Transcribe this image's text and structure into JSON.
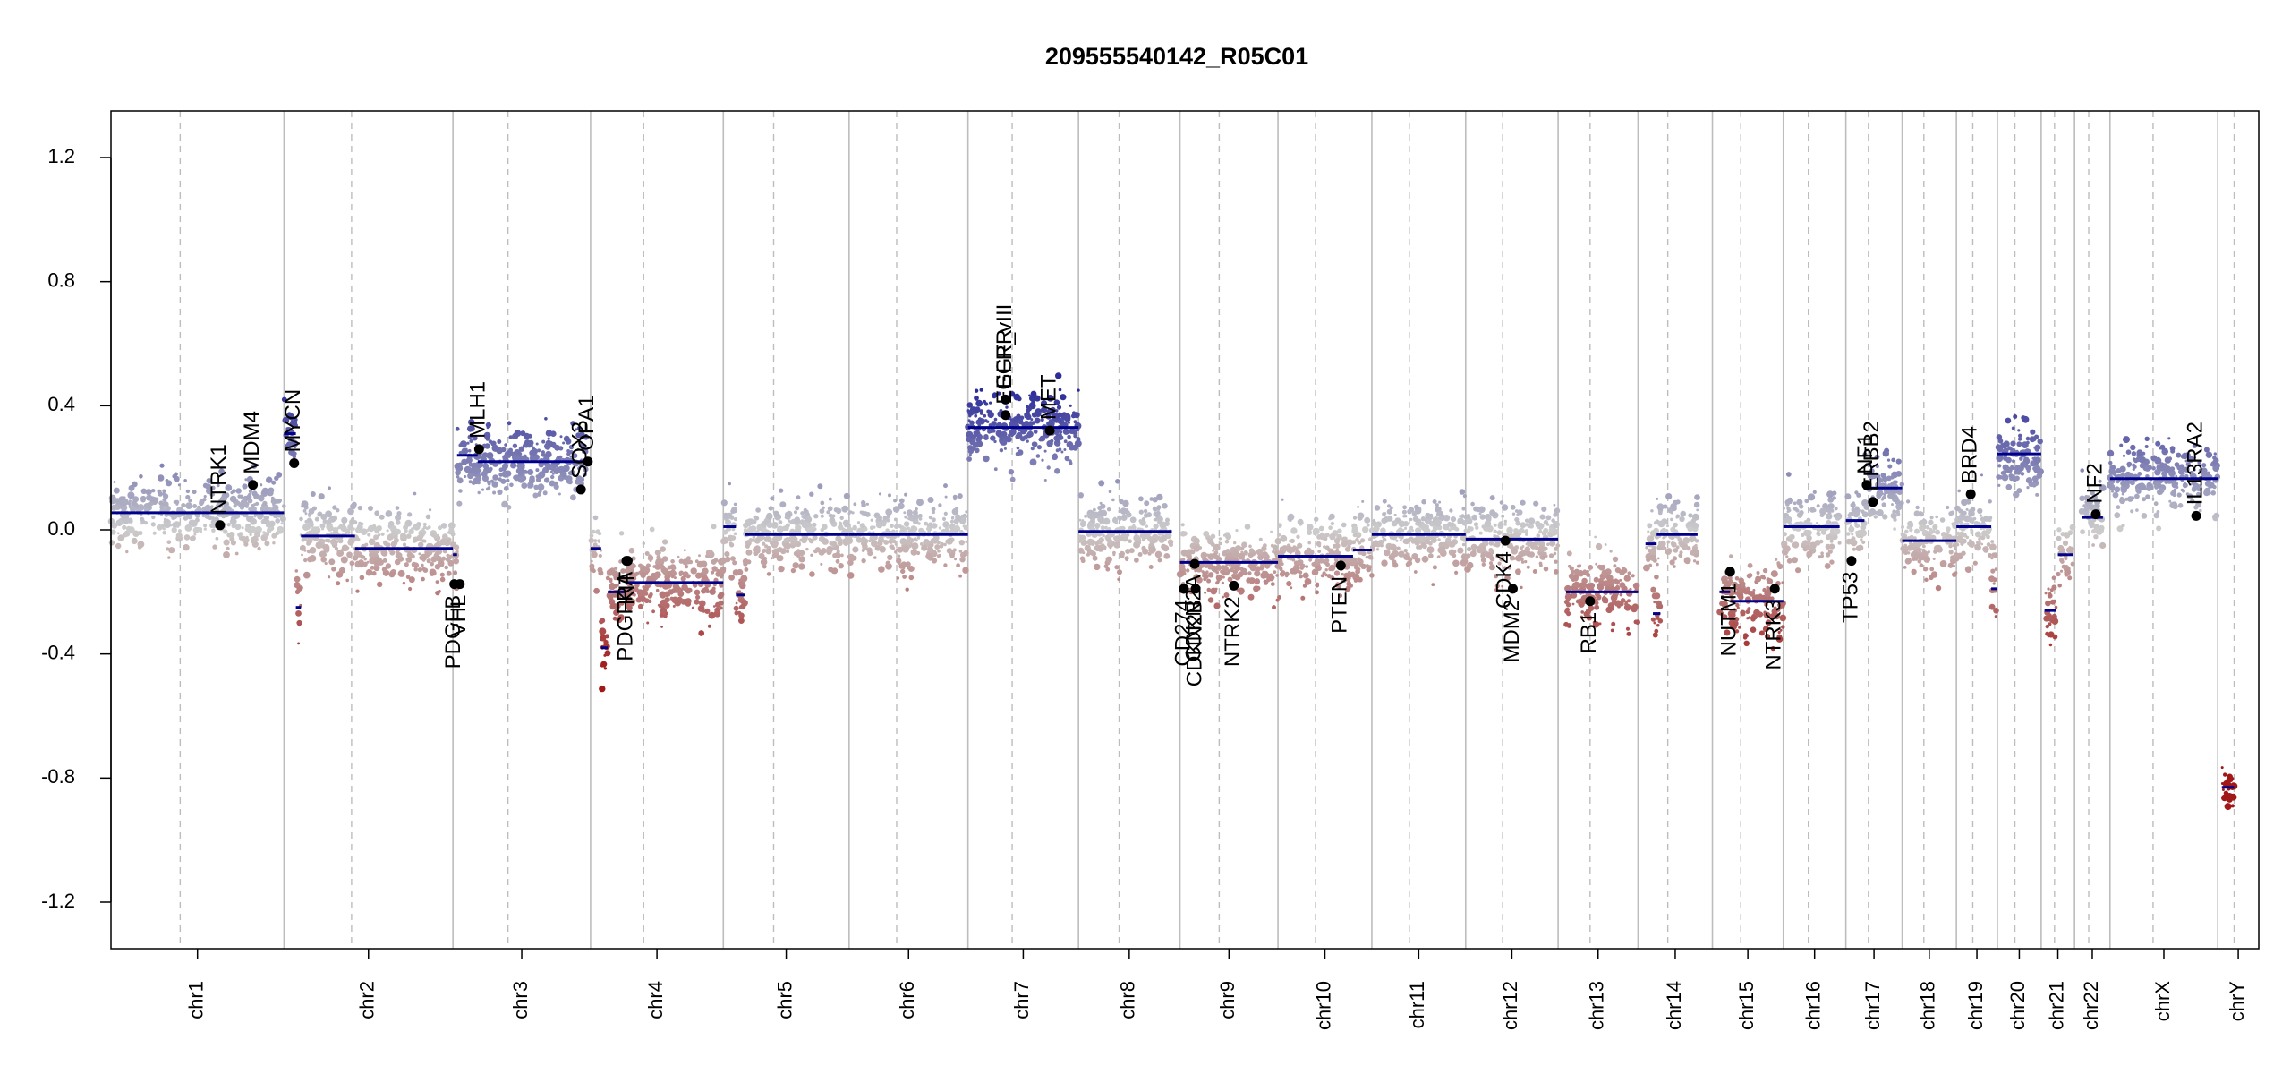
{
  "chart_data": {
    "type": "scatter",
    "title": "209555540142_R05C01",
    "xlabel": "",
    "ylabel": "",
    "ylim": [
      -1.35,
      1.35
    ],
    "yticks": [
      -1.2,
      -0.8,
      -0.4,
      0.0,
      0.4,
      0.8,
      1.2
    ],
    "ytick_labels": [
      "-1.2",
      "-0.8",
      "-0.4",
      "0.0",
      "0.4",
      "0.8",
      "1.2"
    ],
    "grid": false,
    "colors": {
      "gain": "#2b2b9a",
      "neutral": "#cccccc",
      "loss": "#a01818",
      "segment": "#00008b",
      "gene_point": "#000000",
      "chr_boundary": "#bdbdbd",
      "centromere": "#bdbdbd"
    },
    "chromosomes": [
      {
        "name": "chr1",
        "width": 249
      },
      {
        "name": "chr2",
        "width": 243
      },
      {
        "name": "chr3",
        "width": 198
      },
      {
        "name": "chr4",
        "width": 191
      },
      {
        "name": "chr5",
        "width": 181
      },
      {
        "name": "chr6",
        "width": 171
      },
      {
        "name": "chr7",
        "width": 159
      },
      {
        "name": "chr8",
        "width": 146
      },
      {
        "name": "chr9",
        "width": 141
      },
      {
        "name": "chr10",
        "width": 135
      },
      {
        "name": "chr11",
        "width": 135
      },
      {
        "name": "chr12",
        "width": 133
      },
      {
        "name": "chr13",
        "width": 115
      },
      {
        "name": "chr14",
        "width": 107
      },
      {
        "name": "chr15",
        "width": 102
      },
      {
        "name": "chr16",
        "width": 90
      },
      {
        "name": "chr17",
        "width": 81
      },
      {
        "name": "chr18",
        "width": 78
      },
      {
        "name": "chr19",
        "width": 59
      },
      {
        "name": "chr20",
        "width": 63
      },
      {
        "name": "chr21",
        "width": 48
      },
      {
        "name": "chr22",
        "width": 51
      },
      {
        "name": "chrX",
        "width": 155
      },
      {
        "name": "chrY",
        "width": 59
      }
    ],
    "segments": [
      {
        "chr": "chr1",
        "start": 0,
        "end": 1.0,
        "value": 0.055
      },
      {
        "chr": "chr2",
        "start": 0,
        "end": 0.07,
        "value": 0.31
      },
      {
        "chr": "chr2",
        "start": 0.07,
        "end": 0.1,
        "value": -0.25
      },
      {
        "chr": "chr2",
        "start": 0.1,
        "end": 0.42,
        "value": -0.02
      },
      {
        "chr": "chr2",
        "start": 0.42,
        "end": 1.0,
        "value": -0.06
      },
      {
        "chr": "chr3",
        "start": 0,
        "end": 0.03,
        "value": -0.08
      },
      {
        "chr": "chr3",
        "start": 0.03,
        "end": 0.18,
        "value": 0.24
      },
      {
        "chr": "chr3",
        "start": 0.18,
        "end": 0.98,
        "value": 0.22
      },
      {
        "chr": "chr4",
        "start": 0,
        "end": 0.08,
        "value": -0.06
      },
      {
        "chr": "chr4",
        "start": 0.08,
        "end": 0.13,
        "value": -0.38
      },
      {
        "chr": "chr4",
        "start": 0.13,
        "end": 0.27,
        "value": -0.2
      },
      {
        "chr": "chr4",
        "start": 0.27,
        "end": 1.0,
        "value": -0.17
      },
      {
        "chr": "chr5",
        "start": 0,
        "end": 0.1,
        "value": 0.01
      },
      {
        "chr": "chr5",
        "start": 0.1,
        "end": 0.17,
        "value": -0.21
      },
      {
        "chr": "chr5",
        "start": 0.17,
        "end": 1.0,
        "value": -0.015
      },
      {
        "chr": "chr6",
        "start": 0,
        "end": 1.0,
        "value": -0.015
      },
      {
        "chr": "chr7",
        "start": 0,
        "end": 1.0,
        "value": 0.33
      },
      {
        "chr": "chr8",
        "start": 0,
        "end": 0.92,
        "value": -0.005
      },
      {
        "chr": "chr9",
        "start": 0,
        "end": 1.0,
        "value": -0.105
      },
      {
        "chr": "chr10",
        "start": 0,
        "end": 0.8,
        "value": -0.085
      },
      {
        "chr": "chr10",
        "start": 0.8,
        "end": 1.0,
        "value": -0.065
      },
      {
        "chr": "chr11",
        "start": 0,
        "end": 1.0,
        "value": -0.015
      },
      {
        "chr": "chr12",
        "start": 0,
        "end": 1.0,
        "value": -0.03
      },
      {
        "chr": "chr13",
        "start": 0.1,
        "end": 1.0,
        "value": -0.2
      },
      {
        "chr": "chr14",
        "start": 0.1,
        "end": 0.25,
        "value": -0.045
      },
      {
        "chr": "chr14",
        "start": 0.25,
        "end": 0.8,
        "value": -0.015
      },
      {
        "chr": "chr14",
        "start": 0.2,
        "end": 0.3,
        "value": -0.27
      },
      {
        "chr": "chr15",
        "start": 0.1,
        "end": 0.25,
        "value": -0.2
      },
      {
        "chr": "chr15",
        "start": 0.25,
        "end": 1.0,
        "value": -0.23
      },
      {
        "chr": "chr16",
        "start": 0,
        "end": 0.9,
        "value": 0.01
      },
      {
        "chr": "chr17",
        "start": 0,
        "end": 0.33,
        "value": 0.03
      },
      {
        "chr": "chr17",
        "start": 0.33,
        "end": 1.0,
        "value": 0.135
      },
      {
        "chr": "chr18",
        "start": 0,
        "end": 1.0,
        "value": -0.035
      },
      {
        "chr": "chr19",
        "start": 0,
        "end": 0.85,
        "value": 0.01
      },
      {
        "chr": "chr19",
        "start": 0.85,
        "end": 1.0,
        "value": -0.19
      },
      {
        "chr": "chr20",
        "start": 0,
        "end": 1.0,
        "value": 0.245
      },
      {
        "chr": "chr21",
        "start": 0.1,
        "end": 0.45,
        "value": -0.26
      },
      {
        "chr": "chr21",
        "start": 0.5,
        "end": 0.95,
        "value": -0.08
      },
      {
        "chr": "chr22",
        "start": 0.2,
        "end": 0.8,
        "value": 0.04
      },
      {
        "chr": "chrX",
        "start": 0,
        "end": 1.0,
        "value": 0.165
      },
      {
        "chr": "chrY",
        "start": 0.1,
        "end": 0.4,
        "value": -0.83
      }
    ],
    "genes": [
      {
        "label": "NTRK1",
        "chr": "chr1",
        "pos": 0.63,
        "value": 0.015
      },
      {
        "label": "MDM4",
        "chr": "chr1",
        "pos": 0.82,
        "value": 0.145
      },
      {
        "label": "MYCN",
        "chr": "chr2",
        "pos": 0.06,
        "value": 0.215
      },
      {
        "label": "PDGFB",
        "chr": "chr3",
        "pos": 0.01,
        "value": -0.175
      },
      {
        "label": "VHL",
        "chr": "chr3",
        "pos": 0.05,
        "value": -0.175
      },
      {
        "label": "MLH1",
        "chr": "chr3",
        "pos": 0.19,
        "value": 0.26
      },
      {
        "label": "SOX2",
        "chr": "chr3",
        "pos": 0.93,
        "value": 0.13
      },
      {
        "label": "OPA1",
        "chr": "chr3",
        "pos": 0.98,
        "value": 0.22
      },
      {
        "label": "PDGFRA",
        "chr": "chr4",
        "pos": 0.27,
        "value": -0.1
      },
      {
        "label": "KIT",
        "chr": "chr4",
        "pos": 0.28,
        "value": -0.1
      },
      {
        "label": "EGFR",
        "chr": "chr7",
        "pos": 0.34,
        "value": 0.42
      },
      {
        "label": "EGFR_vIII",
        "chr": "chr7",
        "pos": 0.34,
        "value": 0.37
      },
      {
        "label": "MET",
        "chr": "chr7",
        "pos": 0.74,
        "value": 0.32
      },
      {
        "label": "CDKN2A",
        "chr": "chr9",
        "pos": 0.15,
        "value": -0.11
      },
      {
        "label": "CDKN2B",
        "chr": "chr9",
        "pos": 0.16,
        "value": -0.19
      },
      {
        "label": "CD274",
        "chr": "chr9",
        "pos": 0.04,
        "value": -0.19
      },
      {
        "label": "NTRK2",
        "chr": "chr9",
        "pos": 0.55,
        "value": -0.18
      },
      {
        "label": "PTEN",
        "chr": "chr10",
        "pos": 0.67,
        "value": -0.115
      },
      {
        "label": "CDK4",
        "chr": "chr12",
        "pos": 0.43,
        "value": -0.035
      },
      {
        "label": "MDM2",
        "chr": "chr12",
        "pos": 0.51,
        "value": -0.19
      },
      {
        "label": "RB1",
        "chr": "chr13",
        "pos": 0.4,
        "value": -0.23
      },
      {
        "label": "NUTM1",
        "chr": "chr15",
        "pos": 0.25,
        "value": -0.135
      },
      {
        "label": "NTRK3",
        "chr": "chr15",
        "pos": 0.88,
        "value": -0.19
      },
      {
        "label": "TP53",
        "chr": "chr17",
        "pos": 0.1,
        "value": -0.1
      },
      {
        "label": "NF1",
        "chr": "chr17",
        "pos": 0.37,
        "value": 0.145
      },
      {
        "label": "ERBB2",
        "chr": "chr17",
        "pos": 0.48,
        "value": 0.09
      },
      {
        "label": "BRD4",
        "chr": "chr19",
        "pos": 0.35,
        "value": 0.115
      },
      {
        "label": "NF2",
        "chr": "chr22",
        "pos": 0.6,
        "value": 0.05
      },
      {
        "label": "IL13RA2",
        "chr": "chrX",
        "pos": 0.8,
        "value": 0.045
      }
    ]
  }
}
